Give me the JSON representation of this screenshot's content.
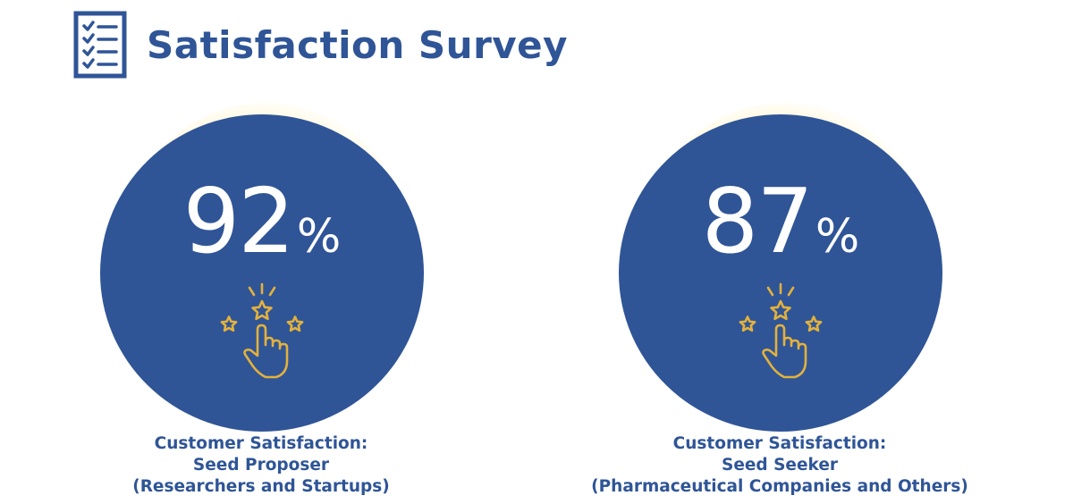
{
  "header": {
    "title": "Satisfaction Survey",
    "icon": "checklist-icon"
  },
  "cards": [
    {
      "value": "92",
      "unit": "%",
      "icon": "star-rating-hand-icon",
      "caption": {
        "line1": "Customer Satisfaction:",
        "line2": "Seed Proposer",
        "line3": "(Researchers and Startups)"
      }
    },
    {
      "value": "87",
      "unit": "%",
      "icon": "star-rating-hand-icon",
      "caption": {
        "line1": "Customer Satisfaction:",
        "line2": "Seed Seeker",
        "line3": "(Pharmaceutical Companies and Others)"
      }
    }
  ],
  "colors": {
    "primary": "#2f5597",
    "accent_gold": "#e3b13c",
    "glow": "#ffe68c",
    "stat_text": "#ffffff"
  }
}
